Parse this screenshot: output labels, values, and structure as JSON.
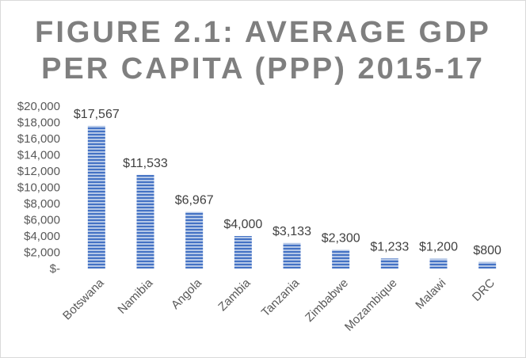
{
  "chart_data": {
    "type": "bar",
    "title_lines": [
      "FIGURE 2.1: AVERAGE GDP",
      "PER CAPITA (PPP) 2015-17"
    ],
    "categories": [
      "Botswana",
      "Namibia",
      "Angola",
      "Zambia",
      "Tanzania",
      "Zimbabwe",
      "Mozambique",
      "Malawi",
      "DRC"
    ],
    "values": [
      17567,
      11533,
      6967,
      4000,
      3133,
      2300,
      1233,
      1200,
      800
    ],
    "data_labels": [
      "$17,567",
      "$11,533",
      "$6,967",
      "$4,000",
      "$3,133",
      "$2,300",
      "$1,233",
      "$1,200",
      "$800"
    ],
    "ylim": [
      0,
      20000
    ],
    "y_ticks": [
      0,
      2000,
      4000,
      6000,
      8000,
      10000,
      12000,
      14000,
      16000,
      18000,
      20000
    ],
    "y_tick_labels": [
      "$-",
      "$2,000",
      "$4,000",
      "$6,000",
      "$8,000",
      "$10,000",
      "$12,000",
      "$14,000",
      "$16,000",
      "$18,000",
      "$20,000"
    ],
    "grid": false,
    "legend": "none",
    "bar_color": "#4472c4",
    "bar_pattern": "horizontal stripes"
  }
}
